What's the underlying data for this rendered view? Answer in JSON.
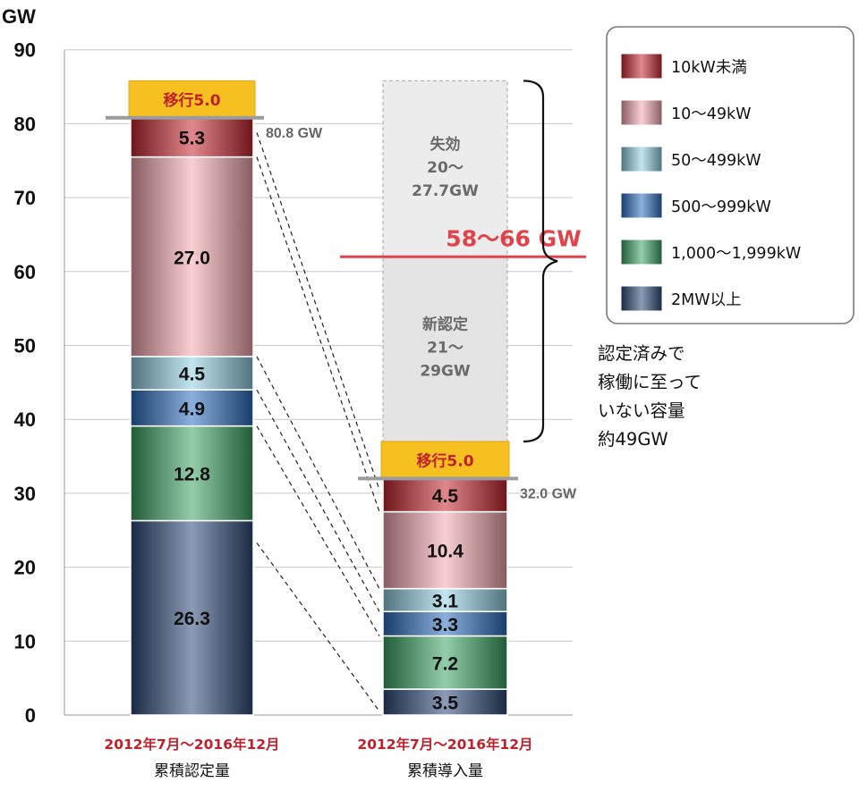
{
  "chart_data": {
    "type": "bar",
    "stacked": true,
    "y_unit": "GW",
    "ylim": [
      0,
      90
    ],
    "yticks": [
      "0",
      "10",
      "20",
      "30",
      "40",
      "50",
      "60",
      "70",
      "80",
      "90"
    ],
    "grid": true,
    "legend_position": "top-right",
    "categories": [
      {
        "date": "2012年7月～2016年12月",
        "name": "累積認定量"
      },
      {
        "date": "2012年7月～2016年12月",
        "name": "累積導入量"
      }
    ],
    "series": [
      {
        "name": "2MW以上",
        "color": "#2e4a78",
        "values": [
          26.3,
          3.5
        ],
        "labels": [
          "26.3",
          "3.5"
        ]
      },
      {
        "name": "1,000～1,999kW",
        "color": "#3aa464",
        "values": [
          12.8,
          7.2
        ],
        "labels": [
          "12.8",
          "7.2"
        ]
      },
      {
        "name": "500～999kW",
        "color": "#2e6fc2",
        "values": [
          4.9,
          3.3
        ],
        "labels": [
          "4.9",
          "3.3"
        ]
      },
      {
        "name": "50～499kW",
        "color": "#92d0e2",
        "values": [
          4.5,
          3.1
        ],
        "labels": [
          "4.5",
          "3.1"
        ]
      },
      {
        "name": "10～49kW",
        "color": "#f5a8b0",
        "values": [
          27.0,
          10.4
        ],
        "labels": [
          "27.0",
          "10.4"
        ]
      },
      {
        "name": "10kW未満",
        "color": "#c8262e",
        "values": [
          5.3,
          4.5
        ],
        "labels": [
          "5.3",
          "4.5"
        ]
      }
    ],
    "legend_order": [
      "10kW未満",
      "10～49kW",
      "50～499kW",
      "500～999kW",
      "1,000～1,999kW",
      "2MW以上"
    ],
    "totals": [
      {
        "value": 80.8,
        "label": "80.8 GW"
      },
      {
        "value": 32.0,
        "label": "32.0 GW"
      }
    ],
    "transition": [
      {
        "value": 5.0,
        "label": "移行5.0",
        "color": "#f6c021"
      },
      {
        "value": 5.0,
        "label": "移行5.0",
        "color": "#f6c021"
      }
    ],
    "pending_bands": {
      "new_certified": {
        "from": 37.0,
        "to": 62.0,
        "lines": [
          "新認定",
          "21～",
          "29GW"
        ]
      },
      "expired": {
        "from": 62.0,
        "to": 85.8,
        "lines": [
          "失効",
          "20～",
          "27.7GW"
        ]
      }
    },
    "range_line": {
      "value": 62.0,
      "label": "58～66 GW",
      "color": "#e1434b"
    },
    "brace_annotation": {
      "from": 37.0,
      "to": 85.8,
      "lines": [
        "認定済みで",
        "稼働に至って",
        "いない容量",
        "約49GW"
      ]
    }
  }
}
